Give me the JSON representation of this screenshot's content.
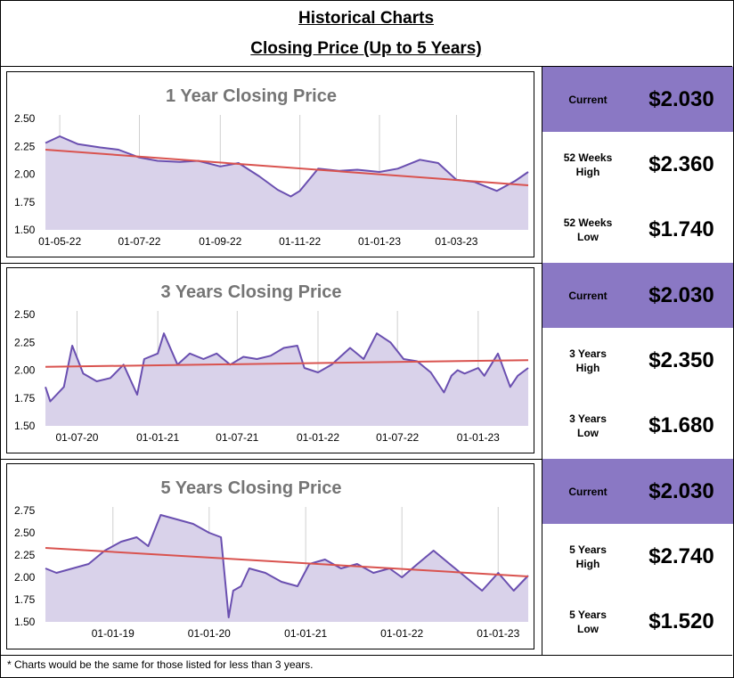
{
  "header": {
    "title": "Historical Charts",
    "subtitle": "Closing Price (Up to 5 Years)"
  },
  "footer": "* Charts would be the same for those listed for less than 3 years.",
  "colors": {
    "line": "#6a4fb0",
    "fill": "#d9d2ea",
    "trend": "#d9534f",
    "current_bg": "#8a78c4"
  },
  "panels": [
    {
      "rows": [
        {
          "label": "Current",
          "value": "$2.030"
        },
        {
          "label": "52 Weeks\nHigh",
          "value": "$2.360"
        },
        {
          "label": "52 Weeks\nLow",
          "value": "$1.740"
        }
      ]
    },
    {
      "rows": [
        {
          "label": "Current",
          "value": "$2.030"
        },
        {
          "label": "3 Years\nHigh",
          "value": "$2.350"
        },
        {
          "label": "3 Years\nLow",
          "value": "$1.680"
        }
      ]
    },
    {
      "rows": [
        {
          "label": "Current",
          "value": "$2.030"
        },
        {
          "label": "5 Years\nHigh",
          "value": "$2.740"
        },
        {
          "label": "5 Years\nLow",
          "value": "$1.520"
        }
      ]
    }
  ],
  "chart_data": [
    {
      "type": "area",
      "title": "1 Year Closing Price",
      "ylim": [
        1.5,
        2.5
      ],
      "yticks": [
        "2.50",
        "2.25",
        "2.00",
        "1.75",
        "1.50"
      ],
      "x_tick_labels": [
        "01-05-22",
        "01-07-22",
        "01-09-22",
        "01-11-22",
        "01-01-23",
        "01-03-23"
      ],
      "x_tick_dates": [
        "2022-05-01",
        "2022-07-01",
        "2022-09-01",
        "2022-11-01",
        "2023-01-01",
        "2023-03-01"
      ],
      "grid": "vertical",
      "series": [
        {
          "x": [
            "2022-04-20",
            "2022-05-01",
            "2022-05-15",
            "2022-06-01",
            "2022-06-15",
            "2022-07-01",
            "2022-07-15",
            "2022-08-01",
            "2022-08-15",
            "2022-09-01",
            "2022-09-15",
            "2022-10-01",
            "2022-10-15",
            "2022-10-25",
            "2022-11-01",
            "2022-11-15",
            "2022-12-01",
            "2022-12-15",
            "2023-01-01",
            "2023-01-15",
            "2023-02-01",
            "2023-02-15",
            "2023-03-01",
            "2023-03-15",
            "2023-04-01",
            "2023-04-15",
            "2023-04-25"
          ],
          "y": [
            2.28,
            2.34,
            2.27,
            2.24,
            2.22,
            2.15,
            2.12,
            2.11,
            2.12,
            2.07,
            2.1,
            1.98,
            1.86,
            1.8,
            1.85,
            2.05,
            2.03,
            2.04,
            2.02,
            2.05,
            2.13,
            2.1,
            1.95,
            1.93,
            1.85,
            1.94,
            2.02
          ]
        }
      ],
      "trendline": {
        "x": [
          "2022-04-20",
          "2023-04-25"
        ],
        "y": [
          2.22,
          1.9
        ]
      }
    },
    {
      "type": "area",
      "title": "3 Years Closing Price",
      "ylim": [
        1.5,
        2.5
      ],
      "yticks": [
        "2.50",
        "2.25",
        "2.00",
        "1.75",
        "1.50"
      ],
      "x_tick_labels": [
        "01-07-20",
        "01-01-21",
        "01-07-21",
        "01-01-22",
        "01-07-22",
        "01-01-23"
      ],
      "x_tick_dates": [
        "2020-07-01",
        "2021-01-01",
        "2021-07-01",
        "2022-01-01",
        "2022-07-01",
        "2023-01-01"
      ],
      "grid": "vertical",
      "series": [
        {
          "x": [
            "2020-04-20",
            "2020-05-01",
            "2020-06-01",
            "2020-06-20",
            "2020-07-15",
            "2020-08-15",
            "2020-09-15",
            "2020-10-15",
            "2020-11-15",
            "2020-12-01",
            "2021-01-01",
            "2021-01-15",
            "2021-02-15",
            "2021-03-15",
            "2021-04-15",
            "2021-05-15",
            "2021-06-15",
            "2021-07-15",
            "2021-08-15",
            "2021-09-15",
            "2021-10-15",
            "2021-11-15",
            "2021-12-01",
            "2022-01-01",
            "2022-02-01",
            "2022-03-15",
            "2022-04-15",
            "2022-05-15",
            "2022-06-15",
            "2022-07-15",
            "2022-08-15",
            "2022-09-15",
            "2022-10-15",
            "2022-11-01",
            "2022-11-15",
            "2022-12-01",
            "2023-01-01",
            "2023-01-15",
            "2023-02-15",
            "2023-03-15",
            "2023-04-01",
            "2023-04-25"
          ],
          "y": [
            1.85,
            1.72,
            1.85,
            2.22,
            1.97,
            1.9,
            1.93,
            2.05,
            1.78,
            2.1,
            2.15,
            2.33,
            2.05,
            2.15,
            2.1,
            2.15,
            2.05,
            2.12,
            2.1,
            2.13,
            2.2,
            2.22,
            2.02,
            1.98,
            2.05,
            2.2,
            2.1,
            2.33,
            2.25,
            2.1,
            2.08,
            1.98,
            1.8,
            1.95,
            2.0,
            1.97,
            2.02,
            1.95,
            2.15,
            1.85,
            1.95,
            2.02
          ]
        }
      ],
      "trendline": {
        "x": [
          "2020-04-20",
          "2023-04-25"
        ],
        "y": [
          2.03,
          2.09
        ]
      }
    },
    {
      "type": "area",
      "title": "5 Years Closing Price",
      "ylim": [
        1.5,
        2.75
      ],
      "yticks": [
        "2.75",
        "2.50",
        "2.25",
        "2.00",
        "1.75",
        "1.50"
      ],
      "x_tick_labels": [
        "01-01-19",
        "01-01-20",
        "01-01-21",
        "01-01-22",
        "01-01-23"
      ],
      "x_tick_dates": [
        "2019-01-01",
        "2020-01-01",
        "2021-01-01",
        "2022-01-01",
        "2023-01-01"
      ],
      "grid": "vertical",
      "series": [
        {
          "x": [
            "2018-04-20",
            "2018-06-01",
            "2018-08-01",
            "2018-10-01",
            "2018-12-01",
            "2019-02-01",
            "2019-04-01",
            "2019-05-15",
            "2019-07-01",
            "2019-09-01",
            "2019-11-01",
            "2020-01-01",
            "2020-02-15",
            "2020-03-15",
            "2020-04-01",
            "2020-05-01",
            "2020-06-01",
            "2020-08-01",
            "2020-10-01",
            "2020-12-01",
            "2021-01-15",
            "2021-03-15",
            "2021-05-15",
            "2021-07-15",
            "2021-09-15",
            "2021-11-15",
            "2022-01-01",
            "2022-03-01",
            "2022-05-01",
            "2022-07-01",
            "2022-09-01",
            "2022-11-01",
            "2023-01-01",
            "2023-03-01",
            "2023-04-25"
          ],
          "y": [
            2.1,
            2.05,
            2.1,
            2.15,
            2.3,
            2.4,
            2.45,
            2.35,
            2.7,
            2.65,
            2.6,
            2.5,
            2.45,
            1.55,
            1.85,
            1.9,
            2.1,
            2.05,
            1.95,
            1.9,
            2.15,
            2.2,
            2.1,
            2.15,
            2.05,
            2.1,
            2.0,
            2.15,
            2.3,
            2.15,
            2.0,
            1.85,
            2.05,
            1.85,
            2.02
          ]
        }
      ],
      "trendline": {
        "x": [
          "2018-04-20",
          "2023-04-25"
        ],
        "y": [
          2.33,
          2.01
        ]
      }
    }
  ]
}
